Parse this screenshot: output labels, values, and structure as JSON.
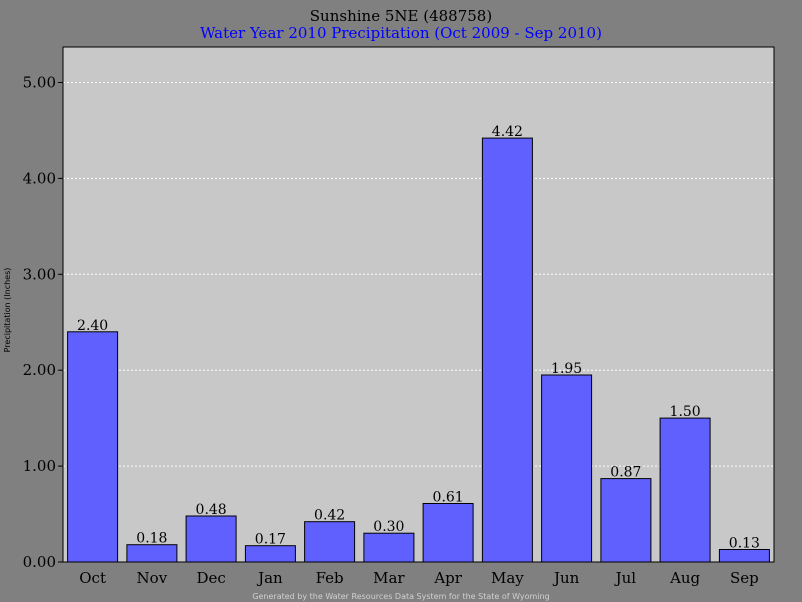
{
  "chart_data": {
    "type": "bar",
    "title": "Sunshine 5NE (488758)",
    "subtitle": "Water Year 2010 Precipitation (Oct 2009 - Sep 2010)",
    "ylabel": "Precipitation (Inches)",
    "xlabel": "",
    "categories": [
      "Oct",
      "Nov",
      "Dec",
      "Jan",
      "Feb",
      "Mar",
      "Apr",
      "May",
      "Jun",
      "Jul",
      "Aug",
      "Sep"
    ],
    "values": [
      2.4,
      0.18,
      0.48,
      0.17,
      0.42,
      0.3,
      0.61,
      4.42,
      1.95,
      0.87,
      1.5,
      0.13
    ],
    "value_labels": [
      "2.40",
      "0.18",
      "0.48",
      "0.17",
      "0.42",
      "0.30",
      "0.61",
      "4.42",
      "1.95",
      "0.87",
      "1.50",
      "0.13"
    ],
    "ylim": [
      0,
      5.0
    ],
    "yticks": [
      0,
      1,
      2,
      3,
      4,
      5
    ],
    "ytick_labels": [
      "0.00",
      "1.00",
      "2.00",
      "3.00",
      "4.00",
      "5.00"
    ],
    "grid": true,
    "legend": "none",
    "footer": "Generated by the Water Resources Data System for the State of Wyoming"
  },
  "colors": {
    "background": "#808080",
    "plot_area": "#c8c8c8",
    "bar_fill": "#6060ff",
    "bar_edge": "#000000",
    "grid": "#ffffff",
    "subtitle": "#0000ff"
  }
}
